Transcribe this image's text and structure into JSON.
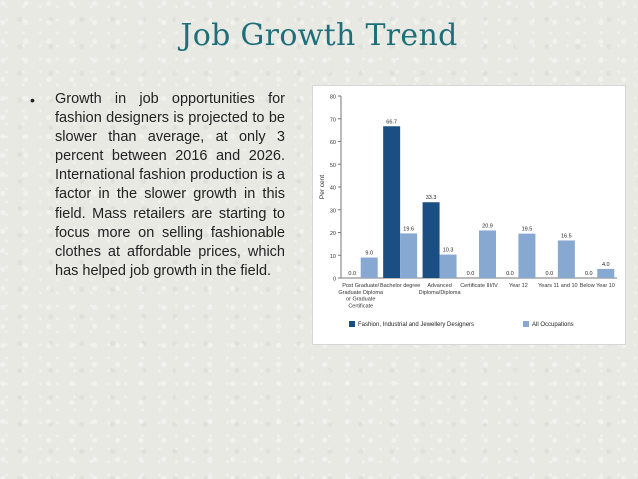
{
  "slide": {
    "title": "Job Growth Trend",
    "bullet": "Growth in job opportunities for fashion designers is projected to be slower than average, at only 3 percent between 2016 and 2026. International fashion production is a factor in the slower growth in this field. Mass retailers are starting to focus more on selling fashionable clothes at affordable prices, which has helped job growth in the field.",
    "bullet_glyph": "•"
  },
  "chart_data": {
    "type": "bar",
    "ylabel": "Per cent",
    "ylim": [
      0,
      80
    ],
    "yticks": [
      "0",
      "10",
      "20",
      "30",
      "40",
      "50",
      "60",
      "70",
      "80"
    ],
    "categories": [
      [
        "Post Graduate/",
        "Graduate Diploma",
        "or Graduate",
        "Certificate"
      ],
      [
        "Bachelor degree"
      ],
      [
        "Advanced",
        "Diploma/Diploma"
      ],
      [
        "Certificate III/IV"
      ],
      [
        "Year 12"
      ],
      [
        "Years 11 and 10"
      ],
      [
        "Below Year 10"
      ]
    ],
    "series": [
      {
        "name": "Fashion, Industrial and Jewellery Designers",
        "color": "#1b4f83",
        "values": [
          0.0,
          66.7,
          33.3,
          0.0,
          0.0,
          0.0,
          0.0
        ],
        "labels": [
          "0.0",
          "66.7",
          "33.3",
          "0.0",
          "0.0",
          "0.0",
          "0.0"
        ]
      },
      {
        "name": "All Occupations",
        "color": "#87a8d1",
        "values": [
          9.0,
          19.6,
          10.3,
          20.9,
          19.5,
          16.5,
          4.0
        ],
        "labels": [
          "9.0",
          "19.6",
          "10.3",
          "20.9",
          "19.5",
          "16.5",
          "4.0"
        ]
      }
    ],
    "legend_position": "bottom",
    "grid": false
  }
}
